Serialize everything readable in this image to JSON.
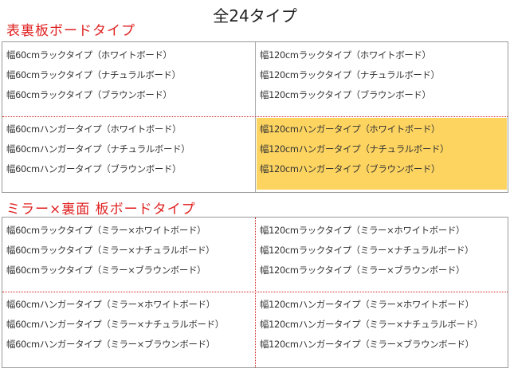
{
  "title": "全24タイプ",
  "sections": [
    {
      "heading": "表裏板ボードタイプ",
      "cells": [
        {
          "lines": [
            "幅60cmラックタイプ（ホワイトボード）",
            "幅60cmラックタイプ（ナチュラルボード）",
            "幅60cmラックタイプ（ブラウンボード）"
          ]
        },
        {
          "lines": [
            "幅120cmラックタイプ（ホワイトボード）",
            "幅120cmラックタイプ（ナチュラルボード）",
            "幅120cmラックタイプ（ブラウンボード）"
          ]
        },
        {
          "lines": [
            "幅60cmハンガータイプ（ホワイトボード）",
            "幅60cmハンガータイプ（ナチュラルボード）",
            "幅60cmハンガータイプ（ブラウンボード）"
          ]
        },
        {
          "lines": [
            "幅120cmハンガータイプ（ホワイトボード）",
            "幅120cmハンガータイプ（ナチュラルボード）",
            "幅120cmハンガータイプ（ブラウンボード）"
          ],
          "highlighted": true
        }
      ]
    },
    {
      "heading": "ミラー×裏面 板ボードタイプ",
      "cells": [
        {
          "lines": [
            "幅60cmラックタイプ（ミラー×ホワイトボード）",
            "幅60cmラックタイプ（ミラー×ナチュラルボード）",
            "幅60cmラックタイプ（ミラー×ブラウンボード）"
          ]
        },
        {
          "lines": [
            "幅120cmラックタイプ（ミラー×ホワイトボード）",
            "幅120cmラックタイプ（ミラー×ナチュラルボード）",
            "幅120cmラックタイプ（ミラー×ブラウンボード）"
          ]
        },
        {
          "lines": [
            "幅60cmハンガータイプ（ミラー×ホワイトボード）",
            "幅60cmハンガータイプ（ミラー×ナチュラルボード）",
            "幅60cmハンガータイプ（ミラー×ブラウンボード）"
          ]
        },
        {
          "lines": [
            "幅120cmハンガータイプ（ミラー×ホワイトボード）",
            "幅120cmハンガータイプ（ミラー×ナチュラルボード）",
            "幅120cmハンガータイプ（ミラー×ブラウンボード）"
          ]
        }
      ]
    }
  ]
}
